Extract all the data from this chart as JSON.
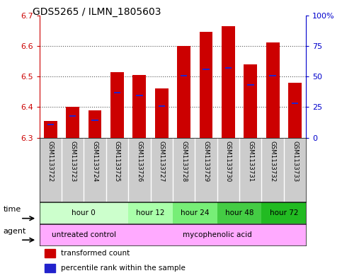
{
  "title": "GDS5265 / ILMN_1805603",
  "samples": [
    "GSM1133722",
    "GSM1133723",
    "GSM1133724",
    "GSM1133725",
    "GSM1133726",
    "GSM1133727",
    "GSM1133728",
    "GSM1133729",
    "GSM1133730",
    "GSM1133731",
    "GSM1133732",
    "GSM1133733"
  ],
  "bar_tops": [
    6.355,
    6.4,
    6.39,
    6.515,
    6.505,
    6.46,
    6.6,
    6.645,
    6.665,
    6.54,
    6.612,
    6.48
  ],
  "bar_bottom": 6.3,
  "blue_y": [
    6.34,
    6.368,
    6.355,
    6.445,
    6.435,
    6.4,
    6.5,
    6.52,
    6.525,
    6.47,
    6.5,
    6.41
  ],
  "ylim": [
    6.3,
    6.7
  ],
  "bar_color": "#cc0000",
  "blue_color": "#2222cc",
  "time_groups": [
    {
      "label": "hour 0",
      "start": 0,
      "end": 4,
      "color": "#ccffcc"
    },
    {
      "label": "hour 12",
      "start": 4,
      "end": 6,
      "color": "#aaffaa"
    },
    {
      "label": "hour 24",
      "start": 6,
      "end": 8,
      "color": "#77ee77"
    },
    {
      "label": "hour 48",
      "start": 8,
      "end": 10,
      "color": "#44cc44"
    },
    {
      "label": "hour 72",
      "start": 10,
      "end": 12,
      "color": "#22bb22"
    }
  ],
  "agent_groups": [
    {
      "label": "untreated control",
      "start": 0,
      "end": 4,
      "color": "#ffaaff"
    },
    {
      "label": "mycophenolic acid",
      "start": 4,
      "end": 12,
      "color": "#ffaaff"
    }
  ],
  "grid_color": "#555555",
  "bg_color": "#ffffff",
  "label_color_left": "#cc0000",
  "label_color_right": "#0000cc",
  "bar_width": 0.6,
  "sample_bg": "#cccccc",
  "legend_red_label": "transformed count",
  "legend_blue_label": "percentile rank within the sample"
}
